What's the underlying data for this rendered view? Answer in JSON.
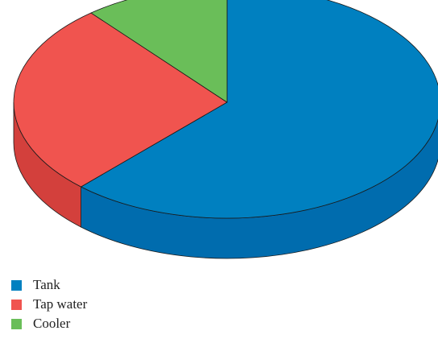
{
  "chart_data": {
    "type": "pie",
    "style": "3d",
    "title": "",
    "legend_position": "bottom-left",
    "slices": [
      {
        "label": "Tank",
        "value": 62,
        "color": "#0080C0",
        "side_color": "#006CAE"
      },
      {
        "label": "Tap water",
        "value": 27,
        "color": "#F0544F",
        "side_color": "#D3403C"
      },
      {
        "label": "Cooler",
        "value": 11,
        "color": "#6ABE59",
        "side_color": "#58A349"
      }
    ]
  }
}
